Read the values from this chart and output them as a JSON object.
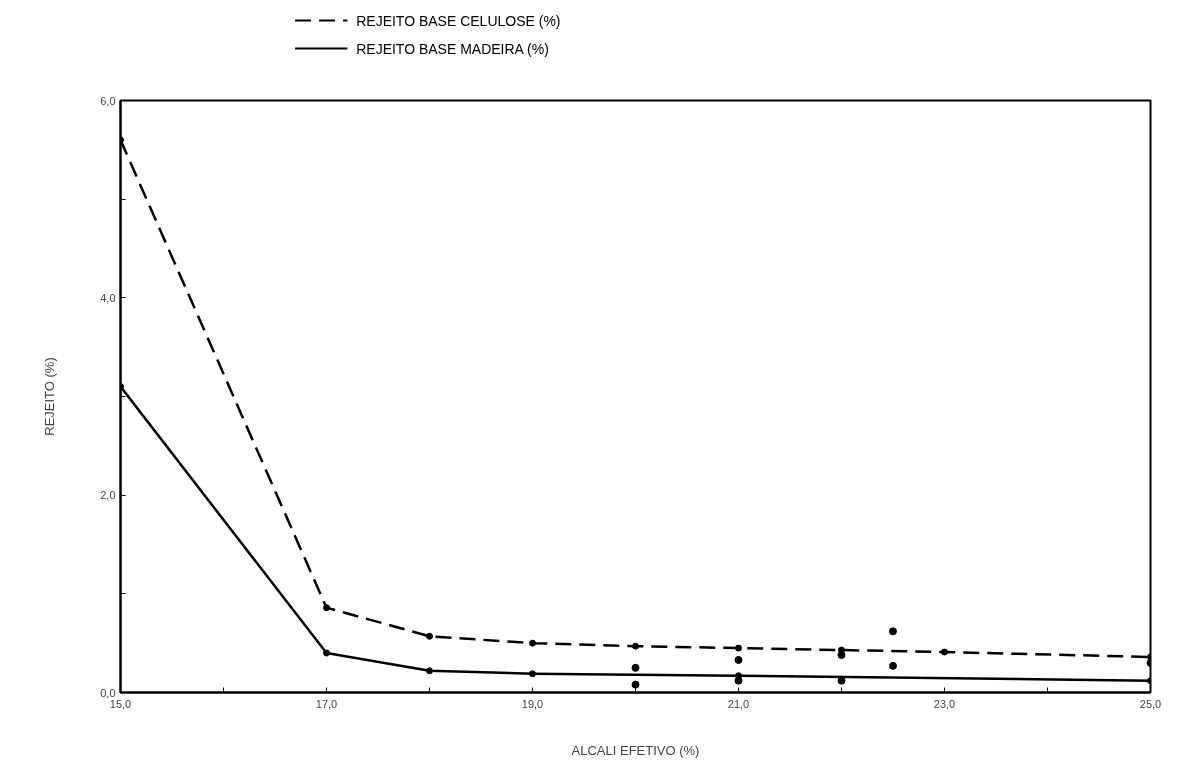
{
  "chart_data": {
    "type": "line",
    "xlabel": "ALCALI EFETIVO\n(%)",
    "ylabel": "REJEITO (%)",
    "xlim": [
      15,
      25
    ],
    "ylim": [
      0,
      6
    ],
    "xticks": [
      {
        "value": 15,
        "label": "15,0"
      },
      {
        "value": 16,
        "label": null
      },
      {
        "value": 17,
        "label": "17,0"
      },
      {
        "value": 18,
        "label": null
      },
      {
        "value": 19,
        "label": "19,0"
      },
      {
        "value": 20,
        "label": null
      },
      {
        "value": 21,
        "label": "21,0"
      },
      {
        "value": 22,
        "label": null
      },
      {
        "value": 23,
        "label": "23,0"
      },
      {
        "value": 24,
        "label": null
      },
      {
        "value": 25,
        "label": "25,0"
      }
    ],
    "yticks": [
      {
        "value": 0,
        "label": "0,0"
      },
      {
        "value": 1,
        "label": null
      },
      {
        "value": 2,
        "label": "2,0"
      },
      {
        "value": 3,
        "label": null
      },
      {
        "value": 4,
        "label": "4,0"
      },
      {
        "value": 5,
        "label": null
      },
      {
        "value": 6,
        "label": "6,0"
      }
    ],
    "grid": false,
    "legend": "top left",
    "marker": "circle",
    "series": [
      {
        "name": "REJEITO BASE CELULOSE (%)",
        "color": "#000000",
        "line_style": "dashed",
        "x": [
          15,
          17,
          18,
          19,
          20,
          21,
          22,
          23,
          25
        ],
        "values": [
          5.6,
          0.86,
          0.57,
          0.5,
          0.47,
          0.45,
          0.43,
          0.41,
          0.36
        ]
      },
      {
        "name": "REJEITO BASE MADEIRA (%)",
        "color": "#000000",
        "line_style": "solid",
        "x": [
          15,
          17,
          18,
          19,
          21,
          25
        ],
        "values": [
          3.1,
          0.4,
          0.22,
          0.19,
          0.17,
          0.12
        ]
      },
      {
        "type": "scatter",
        "color": "#000000",
        "x": [
          20,
          20,
          21,
          21,
          22,
          22,
          22.5,
          22.5,
          25
        ],
        "values": [
          0.25,
          0.08,
          0.33,
          0.12,
          0.38,
          0.12,
          0.62,
          0.27,
          0.3
        ]
      }
    ]
  }
}
